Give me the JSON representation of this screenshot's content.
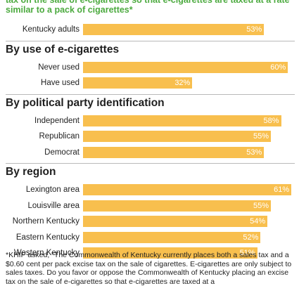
{
  "title": "tax on the sale of e-cigarettes so that e-cigarettes are taxed at a rate similar to a pack of cigarettes*",
  "footnote": "*KHIP asked, \"The Commonwealth of Kentucky currently places both a sales tax and a $0.60 cent per pack excise tax on the sale of cigarettes. E-cigarettes are only subject to sales taxes. Do you favor or oppose the Commonwealth of Kentucky placing an excise tax on the sale of e-cigarettes so that e-cigarettes are taxed at a",
  "colors": {
    "bar": "#f8bf4e",
    "title": "#4caa3f"
  },
  "chart_data": {
    "type": "bar",
    "orientation": "horizontal",
    "unit": "%",
    "xlim": [
      0,
      62
    ],
    "groups": [
      {
        "heading": "",
        "categories": [
          "Kentucky adults"
        ],
        "values": [
          53
        ],
        "labels": [
          "53%"
        ]
      },
      {
        "heading": "By use of e-cigarettes",
        "categories": [
          "Never used",
          "Have used"
        ],
        "values": [
          60,
          32
        ],
        "labels": [
          "60%",
          "32%"
        ]
      },
      {
        "heading": "By political party identification",
        "categories": [
          "Independent",
          "Republican",
          "Democrat"
        ],
        "values": [
          58,
          55,
          53
        ],
        "labels": [
          "58%",
          "55%",
          "53%"
        ]
      },
      {
        "heading": "By region",
        "categories": [
          "Lexington area",
          "Louisville area",
          "Northern Kentucky",
          "Eastern Kentucky",
          "Western Kentucky"
        ],
        "values": [
          61,
          55,
          54,
          52,
          51
        ],
        "labels": [
          "61%",
          "55%",
          "54%",
          "52%",
          "51%"
        ]
      }
    ]
  }
}
